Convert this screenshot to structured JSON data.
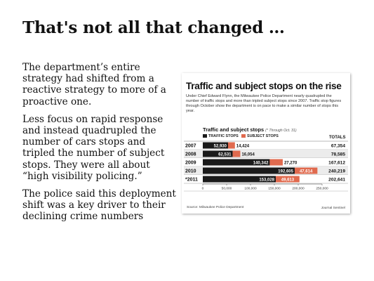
{
  "slide": {
    "title": "That's not all that changed …",
    "bullets": [
      "The department’s entire strategy had shifted from a reactive strategy to more of a proactive one.",
      "Less focus on rapid response and instead quadrupled the number of cars stops and tripled the number of subject stops. They were all about “high visibility policing.”",
      "The police said this deployment shift was a key driver to their declining crime numbers"
    ]
  },
  "graphic": {
    "headline": "Traffic and subject stops on the rise",
    "description": "Under Chief Edward Flynn, the Milwaukee Police Department nearly quadrupled the number of traffic stops and more than tripled subject stops since 2007. Traffic stop figures through October show the department is on pace to make a similar number of stops this year.",
    "source": "Source: Milwaukee Police Department",
    "credit": "Journal Sentinel"
  },
  "chart_data": {
    "type": "bar",
    "orientation": "horizontal",
    "stacked": true,
    "title": "Traffic and subject stops",
    "note": "(* Through Oct. 31)",
    "categories": [
      "2007",
      "2008",
      "2009",
      "2010",
      "*2011"
    ],
    "series": [
      {
        "name": "TRAFFIC STOPS",
        "color": "#1a1a1a",
        "values": [
          52930,
          62531,
          140342,
          192605,
          153028
        ]
      },
      {
        "name": "SUBJECT STOPS",
        "color": "#e06a4e",
        "values": [
          14424,
          16054,
          27270,
          47614,
          49613
        ]
      }
    ],
    "value_labels": {
      "traffic": [
        "52,930",
        "62,531",
        "140,342",
        "192,605",
        "153,028"
      ],
      "subject": [
        "14,424",
        "16,054",
        "27,270",
        "47,614",
        "49,613"
      ]
    },
    "totals_label": "TOTALS",
    "totals": [
      "67,354",
      "78,585",
      "167,612",
      "240,219",
      "202,641"
    ],
    "xlim": [
      0,
      250000
    ],
    "xticks": [
      0,
      50000,
      100000,
      150000,
      200000,
      250000
    ],
    "xtick_labels": [
      "0",
      "50,000",
      "100,000",
      "150,000",
      "200,000",
      "250,000"
    ],
    "legend": "top-left",
    "grid": false
  }
}
